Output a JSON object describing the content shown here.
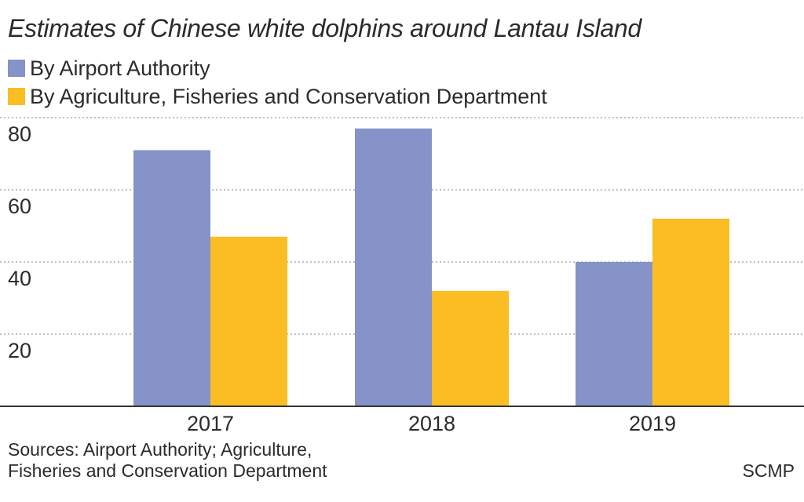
{
  "title": "Estimates of Chinese white dolphins around Lantau Island",
  "source": "Sources: Airport Authority; Agriculture,\nFisheries and Conservation Department",
  "credit": "SCMP",
  "chart_data": {
    "type": "bar",
    "title": "Estimates of Chinese white dolphins around Lantau Island",
    "categories": [
      "2017",
      "2018",
      "2019"
    ],
    "series": [
      {
        "name": "By Airport Authority",
        "color": "#8593c9",
        "values": [
          71,
          77,
          40
        ]
      },
      {
        "name": "By Agriculture, Fisheries and Conservation Department",
        "color": "#fbbd24",
        "values": [
          47,
          32,
          52
        ]
      }
    ],
    "yticks": [
      20,
      40,
      60,
      80
    ],
    "ylim": [
      0,
      80
    ],
    "grid": true,
    "legend": "top-left",
    "xlabel": "",
    "ylabel": ""
  }
}
